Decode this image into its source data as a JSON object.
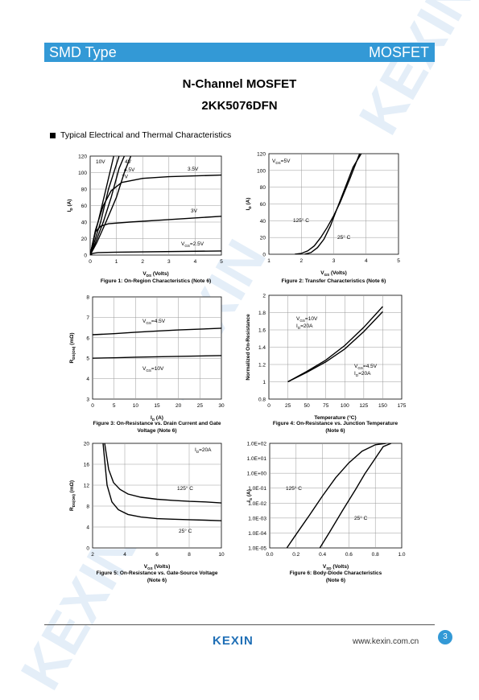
{
  "header": {
    "left_label": "SMD Type",
    "right_label": "MOSFET",
    "accent_color": "#3399d6"
  },
  "doc": {
    "title": "N-Channel MOSFET",
    "part_number": "2KK5076DFN"
  },
  "section": {
    "title": "Typical Electrical and Thermal Characteristics"
  },
  "footer": {
    "logo_text": "KEXIN",
    "url": "www.kexin.com.cn",
    "page_number": "3"
  },
  "watermark": {
    "text": "KEXIN"
  },
  "figures": [
    {
      "xlabel_main": "V",
      "xlabel_sub": "DS",
      "xlabel_unit": " (Volts)",
      "ylabel_main": "I",
      "ylabel_sub": "D",
      "ylabel_unit": " (A)",
      "caption": "Figure 1: On-Region Characteristics (Note 6)"
    },
    {
      "xlabel_main": "V",
      "xlabel_sub": "GS",
      "xlabel_unit": " (Volts)",
      "ylabel_main": "I",
      "ylabel_sub": "D",
      "ylabel_unit": " (A)",
      "caption": "Figure 2: Transfer Characteristics (Note 6)"
    },
    {
      "xlabel_main": "I",
      "xlabel_sub": "D",
      "xlabel_unit": " (A)",
      "ylabel_main": "R",
      "ylabel_sub": "DS(ON)",
      "ylabel_unit": " (mΩ)",
      "caption": "Figure 3: On-Resistance vs. Drain Current and Gate Voltage (Note 6)"
    },
    {
      "xlabel_main": "Temperature (°C)",
      "xlabel_sub": "",
      "xlabel_unit": "",
      "ylabel_main": "Normalized On-Resistance",
      "ylabel_sub": "",
      "ylabel_unit": "",
      "caption": "Figure 4: On-Resistance vs. Junction Temperature (Note 6)"
    },
    {
      "xlabel_main": "V",
      "xlabel_sub": "GS",
      "xlabel_unit": " (Volts)",
      "ylabel_main": "R",
      "ylabel_sub": "DS(ON)",
      "ylabel_unit": " (mΩ)",
      "caption": "Figure 5: On-Resistance vs. Gate-Source Voltage (Note 6)"
    },
    {
      "xlabel_main": "V",
      "xlabel_sub": "SD",
      "xlabel_unit": " (Volts)",
      "ylabel_main": "I",
      "ylabel_sub": "S",
      "ylabel_unit": " (A)",
      "caption": "Figure 6: Body-Diode Characteristics (Note 6)"
    }
  ],
  "chart_data": [
    {
      "type": "line",
      "xlim": [
        0,
        5
      ],
      "ylim": [
        0,
        120
      ],
      "xticks": [
        "0",
        "1",
        "2",
        "3",
        "4",
        "5"
      ],
      "yticks": [
        "0",
        "20",
        "40",
        "60",
        "80",
        "100",
        "120"
      ],
      "grid": true,
      "series": [
        {
          "name": "10V",
          "x": [
            0,
            0.1,
            0.3,
            0.6,
            0.9
          ],
          "y": [
            0,
            15,
            40,
            80,
            120
          ]
        },
        {
          "name": "7V",
          "x": [
            0,
            0.15,
            0.4,
            0.7,
            1.0,
            1.1
          ],
          "y": [
            0,
            15,
            40,
            80,
            110,
            120
          ]
        },
        {
          "name": "4V",
          "x": [
            0,
            0.2,
            0.5,
            0.8,
            1.1,
            1.3
          ],
          "y": [
            0,
            15,
            40,
            70,
            105,
            120
          ]
        },
        {
          "name": "4.5V",
          "x": [
            0,
            0.25,
            0.6,
            1.0,
            1.3,
            1.55
          ],
          "y": [
            0,
            15,
            40,
            70,
            100,
            120
          ]
        },
        {
          "name": "3.5V",
          "x": [
            0,
            0.2,
            0.5,
            0.8,
            1.2,
            2,
            3,
            4,
            5
          ],
          "y": [
            0,
            30,
            60,
            78,
            88,
            93,
            95,
            96,
            97
          ]
        },
        {
          "name": "3V",
          "x": [
            0,
            0.1,
            0.2,
            0.4,
            0.7,
            1.5,
            3,
            5
          ],
          "y": [
            0,
            15,
            28,
            35,
            38,
            40,
            43,
            47
          ]
        },
        {
          "name": "2.5V",
          "x": [
            0,
            0.1,
            0.3,
            1,
            5
          ],
          "y": [
            0,
            2,
            3,
            3.5,
            5
          ]
        }
      ],
      "annotations": [
        "10V",
        "4V",
        "7V",
        "4.5V",
        "3.5V",
        "3V"
      ],
      "vgs_label": {
        "main": "V",
        "sub": "GS",
        "value": "=2.5V"
      }
    },
    {
      "type": "line",
      "xlim": [
        1,
        5
      ],
      "ylim": [
        0,
        120
      ],
      "xticks": [
        "1",
        "2",
        "3",
        "4",
        "5"
      ],
      "yticks": [
        "0",
        "20",
        "40",
        "60",
        "80",
        "100",
        "120"
      ],
      "grid": true,
      "series": [
        {
          "name": "125° C",
          "x": [
            1.8,
            2.0,
            2.2,
            2.4,
            2.6,
            2.8,
            3.0,
            3.2,
            3.5,
            3.8
          ],
          "y": [
            0,
            1,
            4,
            10,
            20,
            32,
            46,
            62,
            90,
            120
          ]
        },
        {
          "name": "25° C",
          "x": [
            2.1,
            2.3,
            2.5,
            2.7,
            2.9,
            3.1,
            3.3,
            3.6,
            3.85
          ],
          "y": [
            0,
            2,
            8,
            18,
            34,
            54,
            74,
            104,
            120
          ]
        }
      ],
      "annotations": [
        "125° C",
        "25° C"
      ],
      "vds_label": {
        "main": "V",
        "sub": "DS",
        "value": "=5V"
      }
    },
    {
      "type": "line",
      "xlim": [
        0,
        30
      ],
      "ylim": [
        3,
        8
      ],
      "xticks": [
        "0",
        "5",
        "10",
        "15",
        "20",
        "25",
        "30"
      ],
      "yticks": [
        "3",
        "4",
        "5",
        "6",
        "7",
        "8"
      ],
      "grid": true,
      "series": [
        {
          "name": "VGS=4.5V",
          "x": [
            0,
            5,
            10,
            15,
            20,
            25,
            30
          ],
          "y": [
            6.15,
            6.2,
            6.27,
            6.33,
            6.38,
            6.42,
            6.47
          ]
        },
        {
          "name": "VGS=10V",
          "x": [
            0,
            5,
            10,
            15,
            20,
            25,
            30
          ],
          "y": [
            5.0,
            5.02,
            5.05,
            5.07,
            5.09,
            5.11,
            5.13
          ]
        }
      ],
      "labels": [
        {
          "main": "V",
          "sub": "GS",
          "value": "=4.5V"
        },
        {
          "main": "V",
          "sub": "GS",
          "value": "=10V"
        }
      ]
    },
    {
      "type": "line",
      "xlim": [
        0,
        175
      ],
      "ylim": [
        0.8,
        2
      ],
      "xticks": [
        "0",
        "25",
        "50",
        "75",
        "100",
        "125",
        "150",
        "175"
      ],
      "yticks": [
        "0.8",
        "1",
        "1.2",
        "1.4",
        "1.6",
        "1.8",
        "2"
      ],
      "grid": true,
      "series": [
        {
          "name": "VGS=10V, ID=20A",
          "x": [
            25,
            50,
            75,
            100,
            125,
            150
          ],
          "y": [
            1.0,
            1.12,
            1.25,
            1.42,
            1.63,
            1.87
          ]
        },
        {
          "name": "VGS=4.5V, ID=20A",
          "x": [
            25,
            50,
            75,
            100,
            125,
            150
          ],
          "y": [
            1.0,
            1.11,
            1.23,
            1.38,
            1.58,
            1.81
          ]
        }
      ],
      "labels": [
        {
          "line1_main": "V",
          "line1_sub": "GS",
          "line1_value": "=10V",
          "line2": "I",
          "line2_sub": "D",
          "line2_value": "=20A"
        },
        {
          "line1_main": "V",
          "line1_sub": "GS",
          "line1_value": "=4.5V",
          "line2": "I",
          "line2_sub": "D",
          "line2_value": "=20A"
        }
      ]
    },
    {
      "type": "line",
      "xlim": [
        2,
        10
      ],
      "ylim": [
        0,
        20
      ],
      "xticks": [
        "2",
        "4",
        "6",
        "8",
        "10"
      ],
      "yticks": [
        "0",
        "4",
        "8",
        "12",
        "16",
        "20"
      ],
      "grid": true,
      "series": [
        {
          "name": "125° C",
          "x": [
            2.75,
            3.0,
            3.3,
            3.7,
            4.2,
            5,
            6,
            7,
            8,
            9,
            10
          ],
          "y": [
            20,
            15,
            12.5,
            11.2,
            10.3,
            9.7,
            9.3,
            9.1,
            8.9,
            8.8,
            8.6
          ]
        },
        {
          "name": "25° C",
          "x": [
            2.65,
            2.9,
            3.2,
            3.6,
            4.2,
            5,
            6,
            7,
            8,
            9,
            10
          ],
          "y": [
            20,
            12,
            8.8,
            7.3,
            6.4,
            5.9,
            5.6,
            5.5,
            5.4,
            5.3,
            5.2
          ]
        }
      ],
      "annotations": [
        "125° C",
        "25° C"
      ],
      "id_label": {
        "main": "I",
        "sub": "D",
        "value": "=20A"
      }
    },
    {
      "type": "line",
      "xlim": [
        0,
        1.0
      ],
      "ylim": [
        -5,
        2
      ],
      "yscale": "log",
      "xticks": [
        "0.0",
        "0.2",
        "0.4",
        "0.6",
        "0.8",
        "1.0"
      ],
      "yticks": [
        "1.0E-05",
        "1.0E-04",
        "1.0E-03",
        "1.0E-02",
        "1.0E-01",
        "1.0E+00",
        "1.0E+01",
        "1.0E+02"
      ],
      "grid": true,
      "series": [
        {
          "name": "125° C",
          "x": [
            0.13,
            0.2,
            0.3,
            0.4,
            0.5,
            0.6,
            0.7,
            0.8,
            0.88
          ],
          "y": [
            1e-05,
            8e-05,
            0.0015,
            0.03,
            0.5,
            5,
            30,
            80,
            100
          ]
        },
        {
          "name": "25° C",
          "x": [
            0.38,
            0.45,
            0.55,
            0.65,
            0.72,
            0.8,
            0.86,
            0.92
          ],
          "y": [
            1e-05,
            0.0001,
            0.003,
            0.08,
            0.9,
            10,
            60,
            100
          ]
        }
      ],
      "annotations": [
        "125° C",
        "25° C"
      ]
    }
  ]
}
